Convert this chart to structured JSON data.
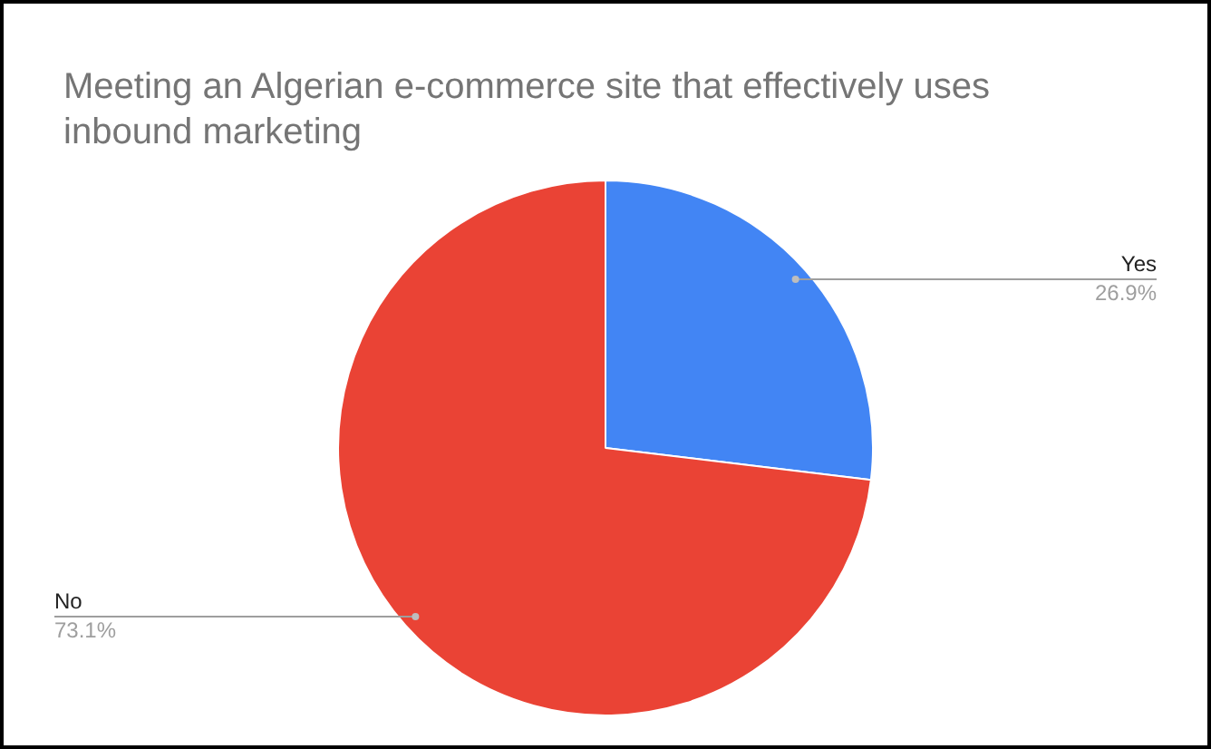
{
  "chart_data": {
    "type": "pie",
    "title": "Meeting an Algerian e-commerce site that effectively uses inbound marketing",
    "categories": [
      "Yes",
      "No"
    ],
    "values": [
      26.9,
      73.1
    ],
    "colors": [
      "#4285f4",
      "#ea4335"
    ],
    "value_labels": [
      "26.9%",
      "73.1%"
    ],
    "legend": false
  }
}
